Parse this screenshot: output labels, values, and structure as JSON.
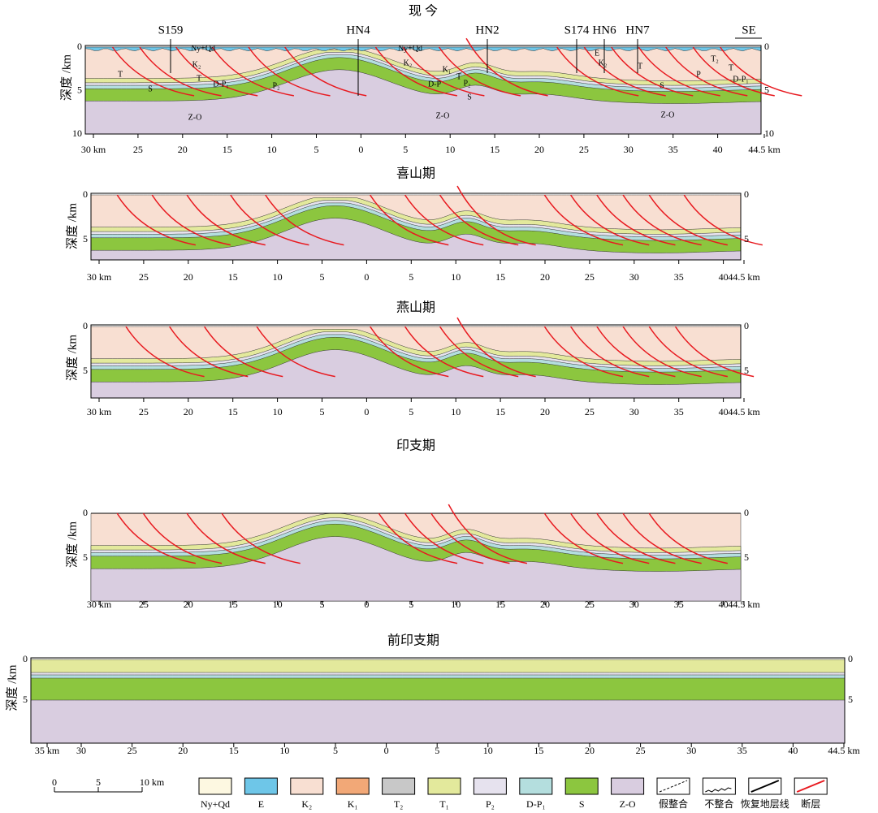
{
  "panels": [
    {
      "title": "现 今",
      "axis_label": "深度 /km",
      "direction": "SE",
      "wells": [
        "S159",
        "HN4",
        "HN2",
        "S174",
        "HN6",
        "HN7"
      ],
      "left_depth_labels": [
        "0",
        "5",
        "10"
      ],
      "right_depth_labels": [
        "0",
        "5",
        "10"
      ],
      "x_labels": [
        "30 km",
        "25",
        "20",
        "15",
        "10",
        "5",
        "0",
        "5",
        "10",
        "15",
        "20",
        "25",
        "30",
        "35",
        "40",
        "44.5 km"
      ],
      "unit_labels": [
        "Ny+Qd",
        "K₂",
        "T",
        "S",
        "T",
        "D-P₁",
        "P₂",
        "Z-O",
        "Ny+Qd",
        "K₂",
        "K₁",
        "T",
        "D-P",
        "P₂",
        "S",
        "Z-O",
        "E",
        "K₂",
        "T",
        "T₂",
        "T",
        "P",
        "D-P₁",
        "S",
        "Z-O"
      ]
    },
    {
      "title": "喜山期",
      "axis_label": "深度 /km",
      "left_depth_labels": [
        "0",
        "5"
      ],
      "right_depth_labels": [
        "0",
        "5"
      ],
      "x_labels": [
        "30 km",
        "25",
        "20",
        "15",
        "10",
        "5",
        "0",
        "5",
        "10",
        "15",
        "20",
        "25",
        "30",
        "35",
        "40",
        "44.5 km"
      ]
    },
    {
      "title": "燕山期",
      "axis_label": "深度 /km",
      "left_depth_labels": [
        "0",
        "5"
      ],
      "right_depth_labels": [
        "0",
        "5"
      ],
      "x_labels": [
        "30 km",
        "25",
        "20",
        "15",
        "10",
        "5",
        "0",
        "5",
        "10",
        "15",
        "20",
        "25",
        "30",
        "35",
        "40",
        "44.5 km"
      ]
    },
    {
      "title": "印支期",
      "axis_label": "深度 /km",
      "left_depth_labels": [
        "0",
        "5"
      ],
      "right_depth_labels": [
        "0",
        "5"
      ],
      "x_labels": [
        "30 km",
        "25",
        "20",
        "15",
        "10",
        "5",
        "0",
        "5",
        "10",
        "15",
        "20",
        "25",
        "30",
        "35",
        "40",
        "44.5 km"
      ]
    },
    {
      "title": "前印支期",
      "axis_label": "深度 /km",
      "left_depth_labels": [
        "0",
        "5"
      ],
      "right_depth_labels": [
        "0",
        "5"
      ],
      "x_labels": [
        "35 km",
        "30",
        "25",
        "20",
        "15",
        "10",
        "5",
        "0",
        "5",
        "10",
        "15",
        "20",
        "25",
        "30",
        "35",
        "40",
        "44.5 km"
      ]
    }
  ],
  "scale_bar": [
    "0",
    "5",
    "10 km"
  ],
  "legend": [
    "Ny+Qd",
    "E",
    "K₂",
    "K₁",
    "T₂",
    "T₁",
    "P₂",
    "D-P₁",
    "S",
    "Z-O",
    "假整合",
    "不整合",
    "恢复地层线",
    "断层"
  ]
}
